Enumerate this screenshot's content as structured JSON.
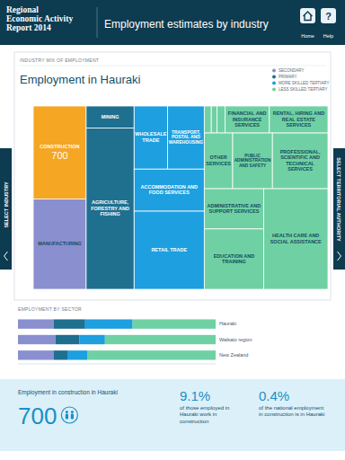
{
  "header": {
    "report_title": [
      "Regional",
      "Economic Activity",
      "Report 2014"
    ],
    "title": "Employment estimates by industry",
    "buttons": [
      {
        "label": "Home"
      },
      {
        "label": "Help",
        "icon": "?"
      }
    ]
  },
  "side_tabs": {
    "left": "SELECT INDUSTRY",
    "right": "SELECT TERRITORIAL AUTHORITY"
  },
  "selection": {
    "industry": "CONSTRUCTION",
    "color": "#f5a623"
  },
  "chart_data": [
    {
      "type": "treemap",
      "subtitle": "INDUSTRY MIX OF EMPLOYMENT",
      "title": "Employment in Hauraki",
      "legend": "top-right",
      "series": [
        {
          "name": "SECONDARY",
          "color": "#8a8fcf",
          "categories": [
            "CONSTRUCTION",
            "MANUFACTURING"
          ],
          "values": [
            700,
            680
          ]
        },
        {
          "name": "PRIMARY",
          "color": "#1f6f8f",
          "categories": [
            "MINING",
            "AGRICULTURE, FORESTRY AND FISHING"
          ],
          "values": [
            150,
            1100
          ]
        },
        {
          "name": "MORE SKILLED TERTIARY",
          "color": "#1d9fe0",
          "categories": [
            "WHOLESALE TRADE",
            "TRANSPORT, POSTAL AND WAREHOUSING",
            "ACCOMMODATION AND FOOD SERVICES",
            "RETAIL TRADE"
          ],
          "values": [
            300,
            330,
            420,
            780
          ]
        },
        {
          "name": "LESS SKILLED TERTIARY",
          "color": "#6fd1a3",
          "categories": [
            null,
            null,
            null,
            "FINANCIAL AND INSURANCE SERVICES",
            "RENTAL, HIRING AND REAL ESTATE SERVICES",
            "OTHER SERVICES",
            "PUBLIC ADMINISTRATION AND SAFETY",
            "PROFESSIONAL, SCIENTIFIC AND TECHNICAL SERVICES",
            "ADMINISTRATIVE AND SUPPORT SERVICES",
            "EDUCATION AND TRAINING",
            "HEALTH CARE AND SOCIAL ASSISTANCE"
          ],
          "values": [
            27,
            22,
            31,
            170,
            225,
            225,
            315,
            440,
            340,
            510,
            920
          ]
        }
      ]
    },
    {
      "type": "bar",
      "title": "EMPLOYMENT BY SECTOR",
      "orientation": "horizontal",
      "stacked": true,
      "tick_labels": "y",
      "categories": [
        "Hauraki",
        "Waikato region",
        "New Zealand"
      ],
      "xlim": [
        0,
        100
      ],
      "series": [
        {
          "color": "#8a8fcf",
          "values": [
            18,
            19,
            18
          ]
        },
        {
          "color": "#1f6f8f",
          "values": [
            16,
            12,
            7
          ]
        },
        {
          "color": "#1d9fe0",
          "values": [
            24,
            13,
            10
          ]
        },
        {
          "color": "#6fd1a3",
          "values": [
            42,
            56,
            65
          ]
        }
      ]
    }
  ],
  "summary": {
    "title": "Employment in construction in Hauraki",
    "value": 700,
    "stats": [
      {
        "value": "9.1%",
        "text": "of those employed in Hauraki work in construction"
      },
      {
        "value": "0.4%",
        "text": "of the national employment in construction is in Hauraki"
      }
    ]
  }
}
